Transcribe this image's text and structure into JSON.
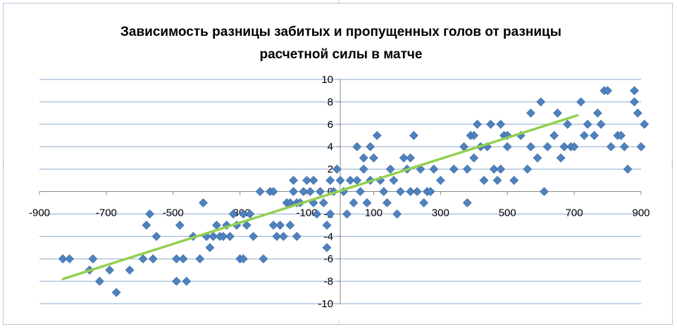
{
  "chart_data": {
    "type": "scatter",
    "title_lines": [
      "Зависимость разницы забитых и пропущенных голов от разницы",
      "расчетной силы в матче"
    ],
    "xlabel": "",
    "ylabel": "",
    "xlim": [
      -900,
      900
    ],
    "ylim": [
      -10,
      10
    ],
    "x_ticks": [
      -900,
      -700,
      -500,
      -300,
      -100,
      100,
      300,
      500,
      700,
      900
    ],
    "y_ticks": [
      10,
      8,
      6,
      4,
      2,
      0,
      -2,
      -4,
      -6,
      -8,
      -10
    ],
    "x_tick_labels": [
      "-900",
      "-700",
      "-500",
      "-300",
      "-100",
      "100",
      "300",
      "500",
      "700",
      "900"
    ],
    "y_tick_labels": [
      "10",
      "8",
      "6",
      "4",
      "2",
      "0",
      "-2",
      "-4",
      "-6",
      "-8",
      "-10"
    ],
    "grid": "horizontal",
    "legend": "none",
    "marker_color": "#4f81bd",
    "trend_color": "#92d050",
    "trendline": {
      "x": [
        -830,
        710
      ],
      "y": [
        -7.8,
        6.8
      ]
    },
    "points": [
      [
        -830,
        -6
      ],
      [
        -810,
        -6
      ],
      [
        -750,
        -7
      ],
      [
        -740,
        -6
      ],
      [
        -720,
        -8
      ],
      [
        -690,
        -7
      ],
      [
        -670,
        -9
      ],
      [
        -630,
        -7
      ],
      [
        -590,
        -6
      ],
      [
        -580,
        -3
      ],
      [
        -570,
        -2
      ],
      [
        -560,
        -6
      ],
      [
        -550,
        -4
      ],
      [
        -490,
        -6
      ],
      [
        -490,
        -8
      ],
      [
        -480,
        -3
      ],
      [
        -470,
        -6
      ],
      [
        -460,
        -8
      ],
      [
        -440,
        -4
      ],
      [
        -420,
        -6
      ],
      [
        -410,
        -1
      ],
      [
        -400,
        -4
      ],
      [
        -390,
        -5
      ],
      [
        -380,
        -4
      ],
      [
        -370,
        -3
      ],
      [
        -360,
        -4
      ],
      [
        -350,
        -4
      ],
      [
        -340,
        -3
      ],
      [
        -330,
        -4
      ],
      [
        -320,
        -2
      ],
      [
        -310,
        -3
      ],
      [
        -300,
        -6
      ],
      [
        -290,
        -6
      ],
      [
        -290,
        -2
      ],
      [
        -280,
        -3
      ],
      [
        -270,
        -2
      ],
      [
        -260,
        -4
      ],
      [
        -240,
        0
      ],
      [
        -230,
        -6
      ],
      [
        -210,
        0
      ],
      [
        -200,
        0
      ],
      [
        -200,
        -3
      ],
      [
        -190,
        -4
      ],
      [
        -180,
        -3
      ],
      [
        -170,
        -4
      ],
      [
        -160,
        -1
      ],
      [
        -150,
        -1
      ],
      [
        -150,
        -3
      ],
      [
        -140,
        0
      ],
      [
        -140,
        1
      ],
      [
        -130,
        -1
      ],
      [
        -130,
        -4
      ],
      [
        -120,
        -1
      ],
      [
        -110,
        0
      ],
      [
        -100,
        1
      ],
      [
        -90,
        0
      ],
      [
        -80,
        -1
      ],
      [
        -80,
        1
      ],
      [
        -70,
        -2
      ],
      [
        -60,
        0
      ],
      [
        -50,
        -1
      ],
      [
        -40,
        -5
      ],
      [
        -40,
        -3
      ],
      [
        -30,
        -2
      ],
      [
        -30,
        1
      ],
      [
        -20,
        0
      ],
      [
        -10,
        2
      ],
      [
        0,
        1
      ],
      [
        10,
        0
      ],
      [
        20,
        -2
      ],
      [
        30,
        1
      ],
      [
        40,
        -1
      ],
      [
        50,
        1
      ],
      [
        50,
        4
      ],
      [
        60,
        0
      ],
      [
        70,
        2
      ],
      [
        70,
        3
      ],
      [
        80,
        -1
      ],
      [
        90,
        1
      ],
      [
        90,
        4
      ],
      [
        100,
        3
      ],
      [
        110,
        5
      ],
      [
        120,
        1
      ],
      [
        130,
        0
      ],
      [
        140,
        -1
      ],
      [
        150,
        2
      ],
      [
        160,
        1
      ],
      [
        170,
        -2
      ],
      [
        180,
        0
      ],
      [
        190,
        3
      ],
      [
        200,
        2
      ],
      [
        210,
        0
      ],
      [
        210,
        3
      ],
      [
        220,
        5
      ],
      [
        230,
        0
      ],
      [
        240,
        2
      ],
      [
        250,
        -1
      ],
      [
        260,
        0
      ],
      [
        270,
        0
      ],
      [
        280,
        2
      ],
      [
        300,
        1
      ],
      [
        340,
        2
      ],
      [
        370,
        4
      ],
      [
        380,
        2
      ],
      [
        380,
        -1
      ],
      [
        390,
        5
      ],
      [
        400,
        3
      ],
      [
        400,
        5
      ],
      [
        410,
        6
      ],
      [
        420,
        4
      ],
      [
        430,
        1
      ],
      [
        440,
        4
      ],
      [
        450,
        6
      ],
      [
        460,
        2
      ],
      [
        470,
        1
      ],
      [
        480,
        6
      ],
      [
        480,
        2
      ],
      [
        490,
        5
      ],
      [
        500,
        4
      ],
      [
        500,
        5
      ],
      [
        520,
        1
      ],
      [
        540,
        5
      ],
      [
        560,
        2
      ],
      [
        570,
        4
      ],
      [
        570,
        7
      ],
      [
        590,
        3
      ],
      [
        600,
        8
      ],
      [
        610,
        0
      ],
      [
        620,
        4
      ],
      [
        640,
        5
      ],
      [
        650,
        7
      ],
      [
        660,
        3
      ],
      [
        670,
        4
      ],
      [
        680,
        6
      ],
      [
        690,
        4
      ],
      [
        700,
        4
      ],
      [
        720,
        8
      ],
      [
        730,
        5
      ],
      [
        740,
        6
      ],
      [
        760,
        5
      ],
      [
        770,
        7
      ],
      [
        780,
        6
      ],
      [
        790,
        9
      ],
      [
        800,
        9
      ],
      [
        810,
        4
      ],
      [
        830,
        5
      ],
      [
        840,
        5
      ],
      [
        850,
        4
      ],
      [
        860,
        2
      ],
      [
        880,
        8
      ],
      [
        880,
        9
      ],
      [
        890,
        7
      ],
      [
        900,
        4
      ],
      [
        910,
        6
      ]
    ]
  },
  "window": {
    "handle_glyph": "⋮"
  }
}
